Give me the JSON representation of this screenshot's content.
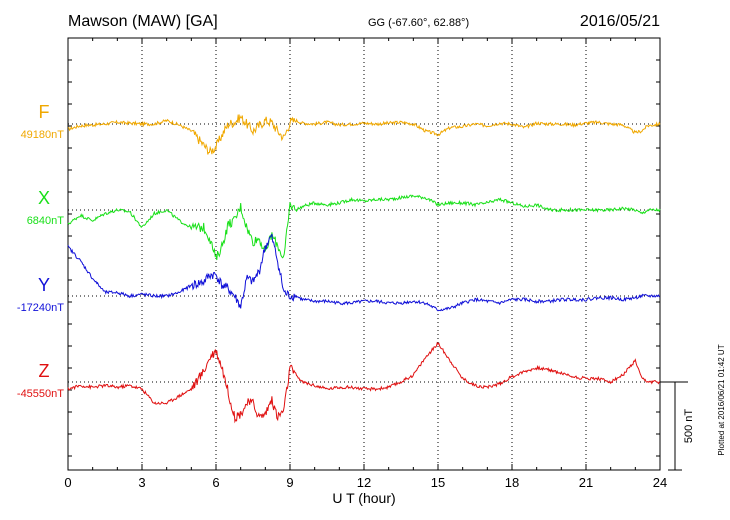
{
  "chart_data": {
    "type": "line",
    "title": "Mawson (MAW)  [GA]",
    "coords": "GG (-67.60°,  62.88°)",
    "date": "2016/05/21",
    "xlabel": "U T (hour)",
    "ylabel": "",
    "xlim": [
      0,
      24
    ],
    "x_ticks": [
      "0",
      "3",
      "6",
      "9",
      "12",
      "15",
      "18",
      "21",
      "24"
    ],
    "grid": true,
    "scale_bar_label": "500 nT",
    "scale_bar_nT": 500,
    "side_note": "Plotted at 2016/06/21 01:42 UT",
    "colors": {
      "F": "#f0a800",
      "X": "#19e019",
      "Y": "#1010d8",
      "Z": "#e01010"
    },
    "x": [
      0,
      0.5,
      1,
      1.5,
      2,
      2.5,
      3,
      3.5,
      4,
      4.5,
      5,
      5.5,
      5.75,
      6,
      6.25,
      6.5,
      6.75,
      7,
      7.25,
      7.5,
      7.75,
      8,
      8.25,
      8.5,
      8.75,
      9,
      9.25,
      9.5,
      10,
      10.5,
      11,
      11.5,
      12,
      12.5,
      13,
      13.5,
      14,
      14.5,
      15,
      15.5,
      16,
      16.5,
      17,
      17.5,
      18,
      18.5,
      19,
      19.5,
      20,
      20.5,
      21,
      21.5,
      22,
      22.5,
      23,
      23.25,
      23.5,
      24
    ],
    "series": [
      {
        "name": "F",
        "baseline_label": "49180nT",
        "values": [
          -30,
          -10,
          -5,
          0,
          10,
          5,
          0,
          0,
          20,
          -5,
          -40,
          -120,
          -160,
          -130,
          -60,
          0,
          10,
          40,
          0,
          -40,
          -10,
          20,
          10,
          -40,
          -80,
          10,
          20,
          5,
          0,
          10,
          -5,
          0,
          5,
          0,
          5,
          10,
          0,
          -40,
          -60,
          -20,
          -15,
          0,
          -10,
          5,
          0,
          -20,
          5,
          0,
          0,
          -5,
          5,
          10,
          0,
          -5,
          -50,
          -40,
          -10,
          0
        ]
      },
      {
        "name": "X",
        "baseline_label": "6840nT",
        "values": [
          -80,
          -30,
          -60,
          -20,
          0,
          -10,
          -100,
          -20,
          0,
          -60,
          -100,
          -100,
          -160,
          -280,
          -200,
          -80,
          -60,
          20,
          -100,
          -180,
          -160,
          -240,
          -140,
          -200,
          -280,
          30,
          0,
          20,
          40,
          30,
          40,
          60,
          50,
          60,
          60,
          70,
          80,
          70,
          30,
          40,
          40,
          30,
          40,
          60,
          40,
          20,
          30,
          0,
          0,
          0,
          0,
          0,
          0,
          10,
          0,
          -20,
          0,
          0
        ]
      },
      {
        "name": "Y",
        "baseline_label": "-17240nT",
        "values": [
          280,
          200,
          100,
          20,
          20,
          0,
          10,
          0,
          0,
          20,
          60,
          80,
          120,
          120,
          60,
          40,
          0,
          -60,
          100,
          80,
          140,
          280,
          340,
          200,
          20,
          0,
          0,
          -20,
          -30,
          -30,
          -40,
          -40,
          -30,
          -30,
          -40,
          -40,
          -30,
          -40,
          -80,
          -70,
          -40,
          -20,
          -30,
          -40,
          -20,
          -20,
          -30,
          -30,
          -20,
          -20,
          -20,
          -10,
          -10,
          -20,
          -10,
          0,
          0,
          0
        ]
      },
      {
        "name": "Z",
        "baseline_label": "-45550nT",
        "values": [
          -40,
          -20,
          -30,
          -20,
          -30,
          -20,
          -40,
          -120,
          -120,
          -80,
          -40,
          60,
          140,
          180,
          80,
          -60,
          -200,
          -180,
          -120,
          -120,
          -200,
          -180,
          -100,
          -200,
          -160,
          80,
          40,
          0,
          -20,
          -40,
          -30,
          -30,
          -40,
          -40,
          -30,
          0,
          40,
          140,
          220,
          120,
          20,
          -20,
          -30,
          -10,
          30,
          60,
          80,
          70,
          50,
          30,
          20,
          20,
          0,
          40,
          120,
          20,
          0,
          0
        ]
      }
    ]
  }
}
